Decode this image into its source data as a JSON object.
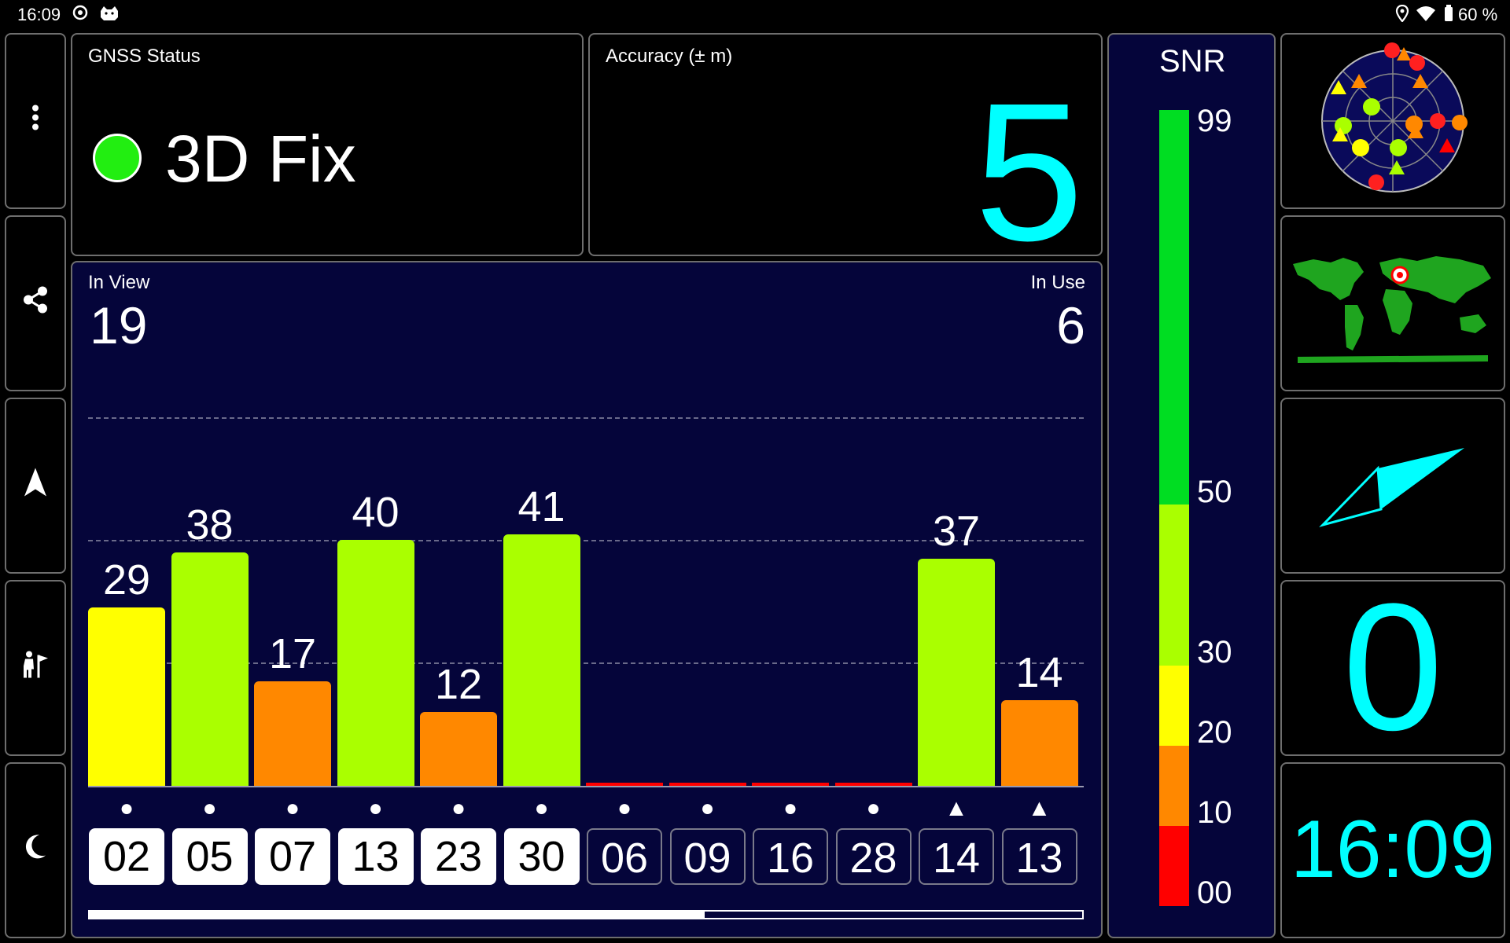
{
  "status_bar": {
    "time": "16:09",
    "battery": "60 %",
    "icons": [
      "notification-icon",
      "bulldog-icon",
      "location-pin-icon",
      "wifi-icon",
      "battery-icon"
    ]
  },
  "sidebar": {
    "buttons": [
      {
        "name": "more-menu-button",
        "icon": "more-vertical-icon",
        "glyph": "⋮"
      },
      {
        "name": "share-button",
        "icon": "share-icon",
        "glyph": ""
      },
      {
        "name": "navigation-button",
        "icon": "navigation-arrow-icon",
        "glyph": "▲"
      },
      {
        "name": "hiking-button",
        "icon": "hiker-flag-icon",
        "glyph": ""
      },
      {
        "name": "night-mode-button",
        "icon": "moon-icon",
        "glyph": "☾"
      }
    ]
  },
  "gnss_status": {
    "label": "GNSS Status",
    "value": "3D Fix",
    "indicator_color": "#22ee11"
  },
  "accuracy": {
    "label": "Accuracy (± m)",
    "value": "5"
  },
  "satellites": {
    "in_view_label": "In View",
    "in_view": "19",
    "in_use_label": "In Use",
    "in_use": "6"
  },
  "snr_gauge": {
    "title": "SNR",
    "ticks": [
      "99",
      "50",
      "30",
      "20",
      "10",
      "00"
    ],
    "colors": {
      "green": "#00dd22",
      "lime": "#aaff00",
      "yellow": "#ffff00",
      "orange": "#ff8800",
      "red": "#ff0000"
    }
  },
  "chart_data": {
    "type": "bar",
    "categories": [
      "02",
      "05",
      "07",
      "13",
      "23",
      "30",
      "06",
      "09",
      "16",
      "28",
      "14",
      "13"
    ],
    "values": [
      29,
      38,
      17,
      40,
      12,
      41,
      0,
      0,
      0,
      0,
      37,
      14
    ],
    "value_labels": [
      "29",
      "38",
      "17",
      "40",
      "12",
      "41",
      "",
      "",
      "",
      "",
      "37",
      "14"
    ],
    "in_use": [
      true,
      true,
      true,
      true,
      true,
      true,
      false,
      false,
      false,
      false,
      false,
      false
    ],
    "markers": [
      "●",
      "●",
      "●",
      "●",
      "●",
      "●",
      "●",
      "●",
      "●",
      "●",
      "▲",
      "▲"
    ],
    "bar_colors": [
      "#ffff00",
      "#aaff00",
      "#ff8800",
      "#aaff00",
      "#ff8800",
      "#aaff00",
      "#ff0000",
      "#ff0000",
      "#ff0000",
      "#ff0000",
      "#aaff00",
      "#ff8800"
    ],
    "ylim": [
      0,
      60
    ],
    "gridlines": [
      20,
      40,
      60
    ]
  },
  "scroll_progress": 0.62,
  "right_panel": {
    "speed_value": "0",
    "clock": "16:09",
    "accent_color": "#00ffff"
  }
}
